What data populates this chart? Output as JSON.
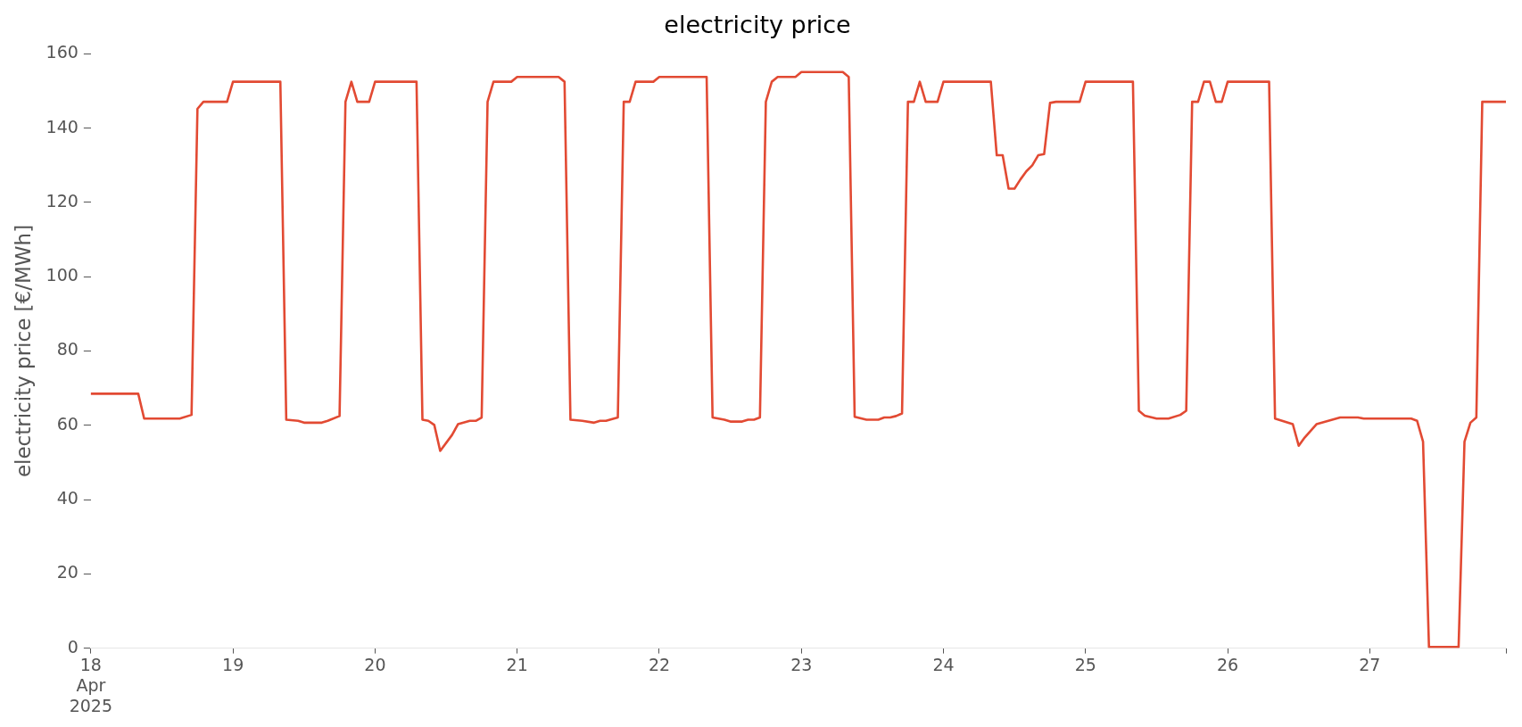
{
  "chart_data": {
    "type": "line",
    "title": "electricity price",
    "ylabel": "electricity price [€/MWh]",
    "x": [
      "2025-04-18T00:00",
      "2025-04-18T08:00",
      "2025-04-18T09:00",
      "2025-04-18T15:00",
      "2025-04-18T17:00",
      "2025-04-18T18:00",
      "2025-04-18T19:00",
      "2025-04-18T23:00",
      "2025-04-19T00:00",
      "2025-04-19T08:00",
      "2025-04-19T09:00",
      "2025-04-19T11:00",
      "2025-04-19T12:00",
      "2025-04-19T15:00",
      "2025-04-19T16:00",
      "2025-04-19T18:00",
      "2025-04-19T19:00",
      "2025-04-19T20:00",
      "2025-04-19T21:00",
      "2025-04-19T23:00",
      "2025-04-20T00:00",
      "2025-04-20T07:00",
      "2025-04-20T08:00",
      "2025-04-20T09:00",
      "2025-04-20T10:00",
      "2025-04-20T11:00",
      "2025-04-20T13:00",
      "2025-04-20T14:00",
      "2025-04-20T16:00",
      "2025-04-20T17:00",
      "2025-04-20T18:00",
      "2025-04-20T19:00",
      "2025-04-20T20:00",
      "2025-04-20T23:00",
      "2025-04-21T00:00",
      "2025-04-21T07:00",
      "2025-04-21T08:00",
      "2025-04-21T09:00",
      "2025-04-21T11:00",
      "2025-04-21T13:00",
      "2025-04-21T14:00",
      "2025-04-21T15:00",
      "2025-04-21T17:00",
      "2025-04-21T18:00",
      "2025-04-21T19:00",
      "2025-04-21T20:00",
      "2025-04-21T23:00",
      "2025-04-22T00:00",
      "2025-04-22T08:00",
      "2025-04-22T09:00",
      "2025-04-22T11:00",
      "2025-04-22T12:00",
      "2025-04-22T14:00",
      "2025-04-22T15:00",
      "2025-04-22T16:00",
      "2025-04-22T17:00",
      "2025-04-22T18:00",
      "2025-04-22T19:00",
      "2025-04-22T20:00",
      "2025-04-22T23:00",
      "2025-04-23T00:00",
      "2025-04-23T07:00",
      "2025-04-23T08:00",
      "2025-04-23T09:00",
      "2025-04-23T11:00",
      "2025-04-23T13:00",
      "2025-04-23T14:00",
      "2025-04-23T15:00",
      "2025-04-23T16:00",
      "2025-04-23T17:00",
      "2025-04-23T18:00",
      "2025-04-23T19:00",
      "2025-04-23T20:00",
      "2025-04-23T21:00",
      "2025-04-23T23:00",
      "2025-04-24T00:00",
      "2025-04-24T08:00",
      "2025-04-24T09:00",
      "2025-04-24T10:00",
      "2025-04-24T11:00",
      "2025-04-24T12:00",
      "2025-04-24T13:00",
      "2025-04-24T14:00",
      "2025-04-24T15:00",
      "2025-04-24T16:00",
      "2025-04-24T17:00",
      "2025-04-24T18:00",
      "2025-04-24T19:00",
      "2025-04-24T23:00",
      "2025-04-25T00:00",
      "2025-04-25T08:00",
      "2025-04-25T09:00",
      "2025-04-25T10:00",
      "2025-04-25T12:00",
      "2025-04-25T14:00",
      "2025-04-25T16:00",
      "2025-04-25T17:00",
      "2025-04-25T18:00",
      "2025-04-25T19:00",
      "2025-04-25T20:00",
      "2025-04-25T21:00",
      "2025-04-25T22:00",
      "2025-04-25T23:00",
      "2025-04-26T00:00",
      "2025-04-26T07:00",
      "2025-04-26T08:00",
      "2025-04-26T11:00",
      "2025-04-26T12:00",
      "2025-04-26T13:00",
      "2025-04-26T15:00",
      "2025-04-26T19:00",
      "2025-04-26T22:00",
      "2025-04-26T23:00",
      "2025-04-27T00:00",
      "2025-04-27T07:00",
      "2025-04-27T08:00",
      "2025-04-27T09:00",
      "2025-04-27T10:00",
      "2025-04-27T15:00",
      "2025-04-27T16:00",
      "2025-04-27T17:00",
      "2025-04-27T18:00",
      "2025-04-27T19:00",
      "2025-04-27T23:00"
    ],
    "series": [
      {
        "color": "#e24a33",
        "values": [
          68.5,
          68.5,
          61.8,
          61.8,
          62.8,
          145.2,
          147.1,
          147.1,
          152.5,
          152.5,
          61.5,
          61.2,
          60.7,
          60.7,
          61.2,
          62.5,
          147.1,
          152.5,
          147.1,
          147.1,
          152.5,
          152.5,
          61.5,
          61.2,
          60.1,
          53.1,
          57.4,
          60.3,
          61.2,
          61.2,
          62.1,
          147.1,
          152.5,
          152.5,
          153.8,
          153.8,
          152.5,
          61.5,
          61.2,
          60.7,
          61.2,
          61.2,
          62.1,
          147.1,
          147.1,
          152.5,
          152.5,
          153.8,
          153.8,
          62.1,
          61.5,
          61.0,
          61.0,
          61.5,
          61.5,
          62.1,
          147.1,
          152.5,
          153.8,
          153.8,
          155.1,
          155.1,
          153.8,
          62.3,
          61.5,
          61.5,
          62.1,
          62.1,
          62.5,
          63.2,
          147.1,
          147.1,
          152.5,
          147.1,
          147.1,
          152.5,
          152.5,
          132.7,
          132.7,
          123.7,
          123.7,
          126.2,
          128.4,
          130.0,
          132.7,
          133.0,
          146.8,
          147.1,
          147.1,
          152.5,
          152.5,
          63.9,
          62.6,
          61.8,
          61.8,
          62.8,
          63.9,
          147.1,
          147.1,
          152.5,
          152.5,
          147.1,
          147.1,
          152.5,
          152.5,
          61.8,
          60.3,
          54.5,
          56.7,
          60.3,
          62.1,
          62.1,
          61.8,
          61.8,
          61.8,
          61.2,
          55.6,
          0.3,
          0.3,
          55.6,
          60.7,
          62.1,
          147.1,
          147.1
        ]
      }
    ],
    "xticks": [
      {
        "value": "2025-04-18",
        "label": "18\nApr\n2025"
      },
      {
        "value": "2025-04-19",
        "label": "19"
      },
      {
        "value": "2025-04-20",
        "label": "20"
      },
      {
        "value": "2025-04-21",
        "label": "21"
      },
      {
        "value": "2025-04-22",
        "label": "22"
      },
      {
        "value": "2025-04-23",
        "label": "23"
      },
      {
        "value": "2025-04-24",
        "label": "24"
      },
      {
        "value": "2025-04-25",
        "label": "25"
      },
      {
        "value": "2025-04-26",
        "label": "26"
      },
      {
        "value": "2025-04-27",
        "label": "27"
      },
      {
        "value": "2025-04-27T23:00",
        "label": null
      }
    ],
    "xlim": [
      "2025-04-18T00:00",
      "2025-04-27T23:00"
    ],
    "ylim": [
      0,
      160
    ],
    "yticks": [
      0,
      20,
      40,
      60,
      80,
      100,
      120,
      140,
      160
    ],
    "grid": false,
    "legend": false,
    "marker": "none",
    "line_style": "solid"
  }
}
